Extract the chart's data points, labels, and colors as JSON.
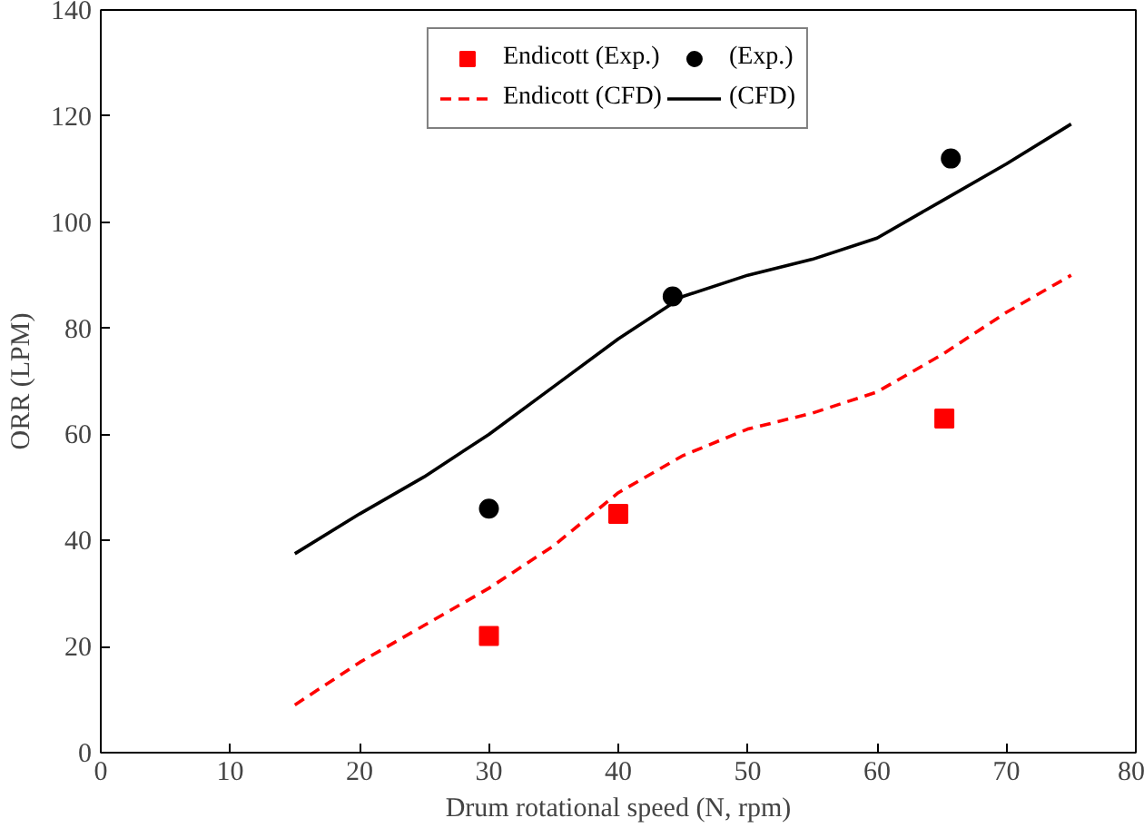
{
  "chart_data": {
    "type": "line",
    "xlabel": "Drum rotational speed (N, rpm)",
    "ylabel": "ORR (LPM)",
    "xlim": [
      0,
      80
    ],
    "xticks": [
      0,
      10,
      20,
      30,
      40,
      50,
      60,
      70,
      80
    ],
    "ylim": [
      0,
      140
    ],
    "yticks": [
      0,
      20,
      40,
      60,
      80,
      100,
      120,
      140
    ],
    "grid": false,
    "legend": "top",
    "series": [
      {
        "name": "Endicott (Exp.)",
        "type": "scatter",
        "marker": "square",
        "color": "#ff0000",
        "x": [
          30,
          40,
          65.2
        ],
        "values": [
          22,
          45,
          63
        ]
      },
      {
        "name": "(Exp.)",
        "type": "scatter",
        "marker": "circle",
        "color": "#000000",
        "x": [
          30,
          44.2,
          65.7
        ],
        "values": [
          46,
          86,
          112
        ]
      },
      {
        "name": "Endicott (CFD)",
        "line_style": "dashed",
        "color": "#ff0000",
        "x": [
          15,
          20,
          25,
          30,
          35,
          40,
          45,
          50,
          55,
          60,
          65,
          70,
          75
        ],
        "values": [
          9,
          17,
          24,
          31,
          39,
          49,
          56,
          61,
          64,
          68,
          75,
          83,
          90
        ]
      },
      {
        "name": "(CFD)",
        "line_style": "solid",
        "color": "#000000",
        "x": [
          15,
          20,
          25,
          30,
          35,
          40,
          45,
          50,
          55,
          60,
          65,
          70,
          75
        ],
        "values": [
          37.5,
          45,
          52,
          60,
          69,
          78,
          86,
          90,
          93,
          97,
          104,
          111,
          118.5
        ]
      }
    ]
  }
}
